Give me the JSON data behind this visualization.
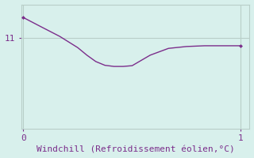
{
  "x": [
    0.0,
    0.083,
    0.167,
    0.25,
    0.292,
    0.333,
    0.375,
    0.417,
    0.458,
    0.5,
    0.583,
    0.667,
    0.75,
    0.833,
    0.917,
    1.0
  ],
  "y": [
    11.55,
    11.3,
    11.05,
    10.75,
    10.55,
    10.38,
    10.28,
    10.25,
    10.25,
    10.27,
    10.55,
    10.73,
    10.78,
    10.8,
    10.8,
    10.8
  ],
  "line_color": "#7B2D8B",
  "marker": "D",
  "marker_size": 2.5,
  "marker_indices": [
    0,
    15
  ],
  "bg_color": "#D8F0EC",
  "grid_color": "#B8CEC8",
  "xlabel": "Windchill (Refroidissement éolien,°C)",
  "xlabel_color": "#7B2D8B",
  "xlabel_fontsize": 8,
  "tick_color": "#7B2D8B",
  "ytick_labels": [
    "11"
  ],
  "ytick_values": [
    11
  ],
  "xtick_labels": [
    "0",
    "1"
  ],
  "xtick_values": [
    0,
    1
  ],
  "xlim": [
    -0.01,
    1.04
  ],
  "ylim": [
    8.6,
    11.9
  ]
}
